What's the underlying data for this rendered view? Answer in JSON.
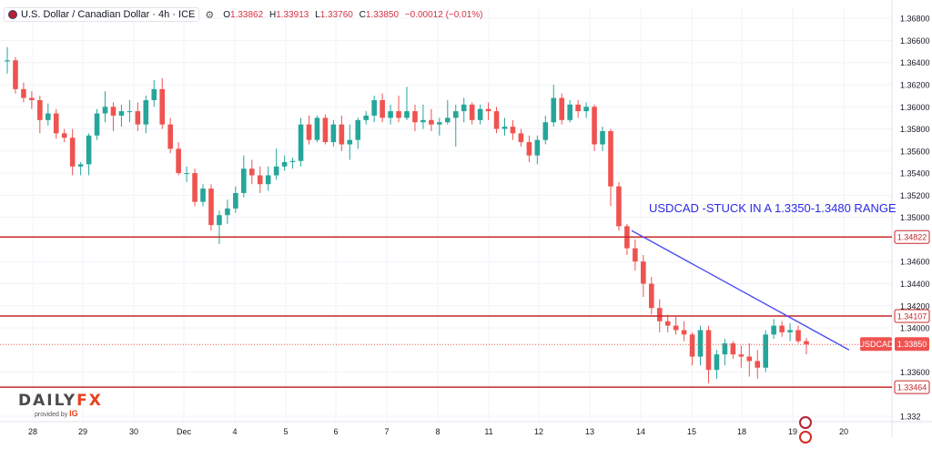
{
  "header": {
    "symbol_title": "U.S. Dollar / Canadian Dollar · 4h · ICE",
    "open_key": "O",
    "open": "1.33862",
    "high_key": "H",
    "high": "1.33913",
    "low_key": "L",
    "low": "1.33760",
    "close_key": "C",
    "close": "1.33850",
    "change": "−0.00012 (−0.01%)"
  },
  "icons": [
    "flag-icon",
    "settings-icon",
    "us-flag-event-icon",
    "canada-flag-event-icon"
  ],
  "colors": {
    "up": "#26a69a",
    "down": "#ef5350",
    "level_line": "#c62828",
    "trend_line": "#4b4cf0",
    "annotation_text": "#2929e6",
    "price_badge": "#ef5350"
  },
  "chart_data": {
    "type": "candlestick",
    "timeframe": "4h",
    "annotation": "USDCAD -STUCK IN A 1.3350-1.3480 RANGE",
    "ylim": [
      1.3316,
      1.369
    ],
    "y_ticks": [
      "1.36800",
      "1.36600",
      "1.36400",
      "1.36200",
      "1.36000",
      "1.35800",
      "1.35600",
      "1.35400",
      "1.35200",
      "1.35000",
      "1.34600",
      "1.34400",
      "1.34200",
      "1.34000",
      "1.33600",
      "1.332"
    ],
    "x_ticks": [
      "28",
      "29",
      "30",
      "Dec",
      "4",
      "5",
      "6",
      "7",
      "8",
      "11",
      "12",
      "13",
      "14",
      "15",
      "18",
      "19",
      "20"
    ],
    "horizontal_levels": [
      1.34822,
      1.34107,
      1.33464
    ],
    "horizontal_level_labels": [
      "1.34822",
      "1.34107",
      "1.33464"
    ],
    "current_price": 1.3385,
    "current_price_label": "1.33850",
    "symbol_badge": "USDCAD",
    "trendline": {
      "from": [
        "14",
        1.3488
      ],
      "to": [
        "20",
        1.338
      ]
    },
    "candles": [
      [
        1.3641,
        1.3654,
        1.363,
        1.3642
      ],
      [
        1.3642,
        1.3645,
        1.3612,
        1.3616
      ],
      [
        1.3616,
        1.3622,
        1.3604,
        1.3608
      ],
      [
        1.3608,
        1.3614,
        1.3598,
        1.3606
      ],
      [
        1.3606,
        1.361,
        1.3576,
        1.3588
      ],
      [
        1.3588,
        1.3603,
        1.3583,
        1.3594
      ],
      [
        1.3594,
        1.3598,
        1.3571,
        1.3576
      ],
      [
        1.3576,
        1.358,
        1.3568,
        1.3572
      ],
      [
        1.3572,
        1.358,
        1.3538,
        1.3546
      ],
      [
        1.3546,
        1.355,
        1.3538,
        1.3548
      ],
      [
        1.3548,
        1.3576,
        1.3538,
        1.3574
      ],
      [
        1.3574,
        1.3598,
        1.357,
        1.3594
      ],
      [
        1.3594,
        1.3614,
        1.3586,
        1.36
      ],
      [
        1.36,
        1.3604,
        1.3578,
        1.3592
      ],
      [
        1.3592,
        1.3602,
        1.3582,
        1.3596
      ],
      [
        1.3596,
        1.3606,
        1.3586,
        1.3596
      ],
      [
        1.3596,
        1.3604,
        1.3578,
        1.3584
      ],
      [
        1.3584,
        1.361,
        1.3576,
        1.3606
      ],
      [
        1.3606,
        1.3624,
        1.36,
        1.3616
      ],
      [
        1.3616,
        1.3626,
        1.358,
        1.3584
      ],
      [
        1.3584,
        1.359,
        1.3558,
        1.3562
      ],
      [
        1.3562,
        1.3568,
        1.3538,
        1.354
      ],
      [
        1.354,
        1.3546,
        1.3532,
        1.354
      ],
      [
        1.354,
        1.3544,
        1.351,
        1.3514
      ],
      [
        1.3514,
        1.353,
        1.351,
        1.3526
      ],
      [
        1.3526,
        1.353,
        1.3488,
        1.3493
      ],
      [
        1.3493,
        1.3506,
        1.3476,
        1.3502
      ],
      [
        1.3502,
        1.3516,
        1.3494,
        1.3508
      ],
      [
        1.3508,
        1.3528,
        1.3504,
        1.3522
      ],
      [
        1.3522,
        1.3556,
        1.3518,
        1.3544
      ],
      [
        1.3544,
        1.3552,
        1.353,
        1.3538
      ],
      [
        1.3538,
        1.3546,
        1.3522,
        1.353
      ],
      [
        1.353,
        1.3546,
        1.3524,
        1.3538
      ],
      [
        1.3538,
        1.3562,
        1.3534,
        1.3546
      ],
      [
        1.3546,
        1.3556,
        1.3542,
        1.355
      ],
      [
        1.355,
        1.3554,
        1.3544,
        1.3551
      ],
      [
        1.3551,
        1.359,
        1.3546,
        1.3584
      ],
      [
        1.3584,
        1.3592,
        1.3566,
        1.357
      ],
      [
        1.357,
        1.3592,
        1.3568,
        1.359
      ],
      [
        1.359,
        1.3593,
        1.3566,
        1.3568
      ],
      [
        1.3568,
        1.3588,
        1.3564,
        1.3584
      ],
      [
        1.3584,
        1.3592,
        1.356,
        1.3566
      ],
      [
        1.3566,
        1.3584,
        1.3552,
        1.357
      ],
      [
        1.357,
        1.359,
        1.3562,
        1.3588
      ],
      [
        1.3588,
        1.3596,
        1.3584,
        1.3592
      ],
      [
        1.3592,
        1.361,
        1.3586,
        1.3606
      ],
      [
        1.3606,
        1.3612,
        1.3586,
        1.359
      ],
      [
        1.359,
        1.3602,
        1.3584,
        1.3596
      ],
      [
        1.3596,
        1.361,
        1.3586,
        1.359
      ],
      [
        1.359,
        1.3618,
        1.3588,
        1.3596
      ],
      [
        1.3596,
        1.3602,
        1.3578,
        1.3586
      ],
      [
        1.3586,
        1.3602,
        1.358,
        1.3588
      ],
      [
        1.3588,
        1.3598,
        1.3578,
        1.3584
      ],
      [
        1.3584,
        1.359,
        1.3574,
        1.3586
      ],
      [
        1.3586,
        1.3606,
        1.3584,
        1.359
      ],
      [
        1.359,
        1.3602,
        1.3564,
        1.3596
      ],
      [
        1.3596,
        1.3608,
        1.3586,
        1.3602
      ],
      [
        1.3602,
        1.3604,
        1.3584,
        1.3588
      ],
      [
        1.3588,
        1.3602,
        1.3584,
        1.3598
      ],
      [
        1.3598,
        1.3604,
        1.3588,
        1.3596
      ],
      [
        1.3596,
        1.36,
        1.3576,
        1.358
      ],
      [
        1.358,
        1.359,
        1.3574,
        1.3582
      ],
      [
        1.3582,
        1.3588,
        1.357,
        1.3576
      ],
      [
        1.3576,
        1.358,
        1.3564,
        1.3568
      ],
      [
        1.3568,
        1.3574,
        1.355,
        1.3556
      ],
      [
        1.3556,
        1.3574,
        1.3548,
        1.357
      ],
      [
        1.357,
        1.3592,
        1.3566,
        1.3586
      ],
      [
        1.3586,
        1.362,
        1.3582,
        1.3608
      ],
      [
        1.3608,
        1.3612,
        1.3584,
        1.3588
      ],
      [
        1.3588,
        1.3606,
        1.3586,
        1.3602
      ],
      [
        1.3602,
        1.3606,
        1.359,
        1.3596
      ],
      [
        1.3596,
        1.3604,
        1.359,
        1.36
      ],
      [
        1.36,
        1.3602,
        1.356,
        1.3566
      ],
      [
        1.3566,
        1.3582,
        1.356,
        1.3578
      ],
      [
        1.3578,
        1.358,
        1.351,
        1.3528
      ],
      [
        1.3528,
        1.3532,
        1.3488,
        1.3492
      ],
      [
        1.3492,
        1.3494,
        1.3466,
        1.3472
      ],
      [
        1.3472,
        1.348,
        1.3452,
        1.346
      ],
      [
        1.346,
        1.3466,
        1.3428,
        1.344
      ],
      [
        1.344,
        1.3446,
        1.3412,
        1.3418
      ],
      [
        1.3418,
        1.3426,
        1.3396,
        1.3406
      ],
      [
        1.3406,
        1.3412,
        1.3396,
        1.3402
      ],
      [
        1.3402,
        1.341,
        1.3394,
        1.3398
      ],
      [
        1.3398,
        1.3406,
        1.3388,
        1.3394
      ],
      [
        1.3394,
        1.3396,
        1.3366,
        1.3374
      ],
      [
        1.3374,
        1.3402,
        1.3366,
        1.3398
      ],
      [
        1.3398,
        1.3402,
        1.335,
        1.3362
      ],
      [
        1.3362,
        1.338,
        1.3354,
        1.3376
      ],
      [
        1.3376,
        1.339,
        1.3366,
        1.3386
      ],
      [
        1.3386,
        1.3388,
        1.3372,
        1.3376
      ],
      [
        1.3376,
        1.3384,
        1.3364,
        1.3374
      ],
      [
        1.3374,
        1.3386,
        1.3356,
        1.337
      ],
      [
        1.337,
        1.338,
        1.3354,
        1.3364
      ],
      [
        1.3364,
        1.3398,
        1.336,
        1.3394
      ],
      [
        1.3394,
        1.3408,
        1.339,
        1.3402
      ],
      [
        1.3402,
        1.3406,
        1.3392,
        1.3396
      ],
      [
        1.3396,
        1.3404,
        1.3388,
        1.3398
      ],
      [
        1.3398,
        1.3402,
        1.3386,
        1.3388
      ],
      [
        1.3388,
        1.3391,
        1.3376,
        1.3385
      ]
    ]
  },
  "watermark": {
    "brand_part1": "DAILY",
    "brand_part2": "FX",
    "provided_by": "provided by",
    "provider": "IG"
  }
}
